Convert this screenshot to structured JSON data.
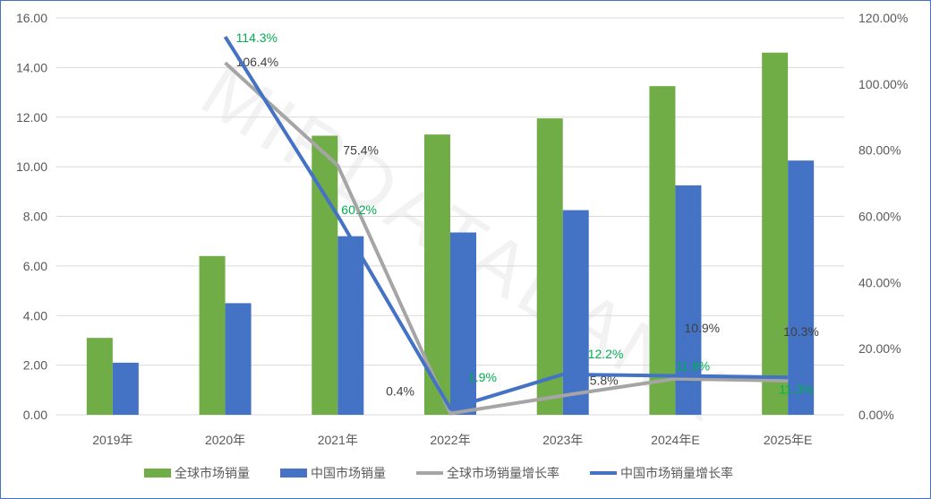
{
  "chart_data": {
    "type": "bar",
    "watermark": "MIRDATABANK",
    "categories": [
      "2019年",
      "2020年",
      "2021年",
      "2022年",
      "2023年",
      "2024年E",
      "2025年E"
    ],
    "left_axis": {
      "ylim": [
        0,
        16
      ],
      "ticks": [
        "0.00",
        "2.00",
        "4.00",
        "6.00",
        "8.00",
        "10.00",
        "12.00",
        "14.00",
        "16.00"
      ]
    },
    "right_axis": {
      "ylim": [
        0,
        120
      ],
      "ticks": [
        "0.00%",
        "20.00%",
        "40.00%",
        "60.00%",
        "80.00%",
        "100.00%",
        "120.00%"
      ]
    },
    "grid": true,
    "legend_position": "bottom",
    "series": [
      {
        "name": "全球市场销量",
        "kind": "bar",
        "axis": "left",
        "color": "#70ad47",
        "values": [
          3.1,
          6.4,
          11.25,
          11.3,
          11.95,
          13.25,
          14.6
        ]
      },
      {
        "name": "中国市场销量",
        "kind": "bar",
        "axis": "left",
        "color": "#4472c4",
        "values": [
          2.1,
          4.5,
          7.2,
          7.35,
          8.25,
          9.25,
          10.25
        ]
      },
      {
        "name": "全球市场销量增长率",
        "kind": "line",
        "axis": "right",
        "color": "#a5a5a5",
        "values": [
          null,
          106.4,
          75.4,
          0.4,
          5.8,
          10.9,
          10.3
        ],
        "labels": [
          "",
          "106.4%",
          "75.4%",
          "0.4%",
          "5.8%",
          "10.9%",
          "10.3%"
        ],
        "label_color": "#404040"
      },
      {
        "name": "中国市场销量增长率",
        "kind": "line",
        "axis": "right",
        "color": "#4472c4",
        "values": [
          null,
          114.3,
          60.2,
          1.9,
          12.2,
          11.8,
          11.3
        ],
        "labels": [
          "",
          "114.3%",
          "60.2%",
          "1.9%",
          "12.2%",
          "11.8%",
          "11.3%"
        ],
        "label_color": "#00b050"
      }
    ]
  }
}
